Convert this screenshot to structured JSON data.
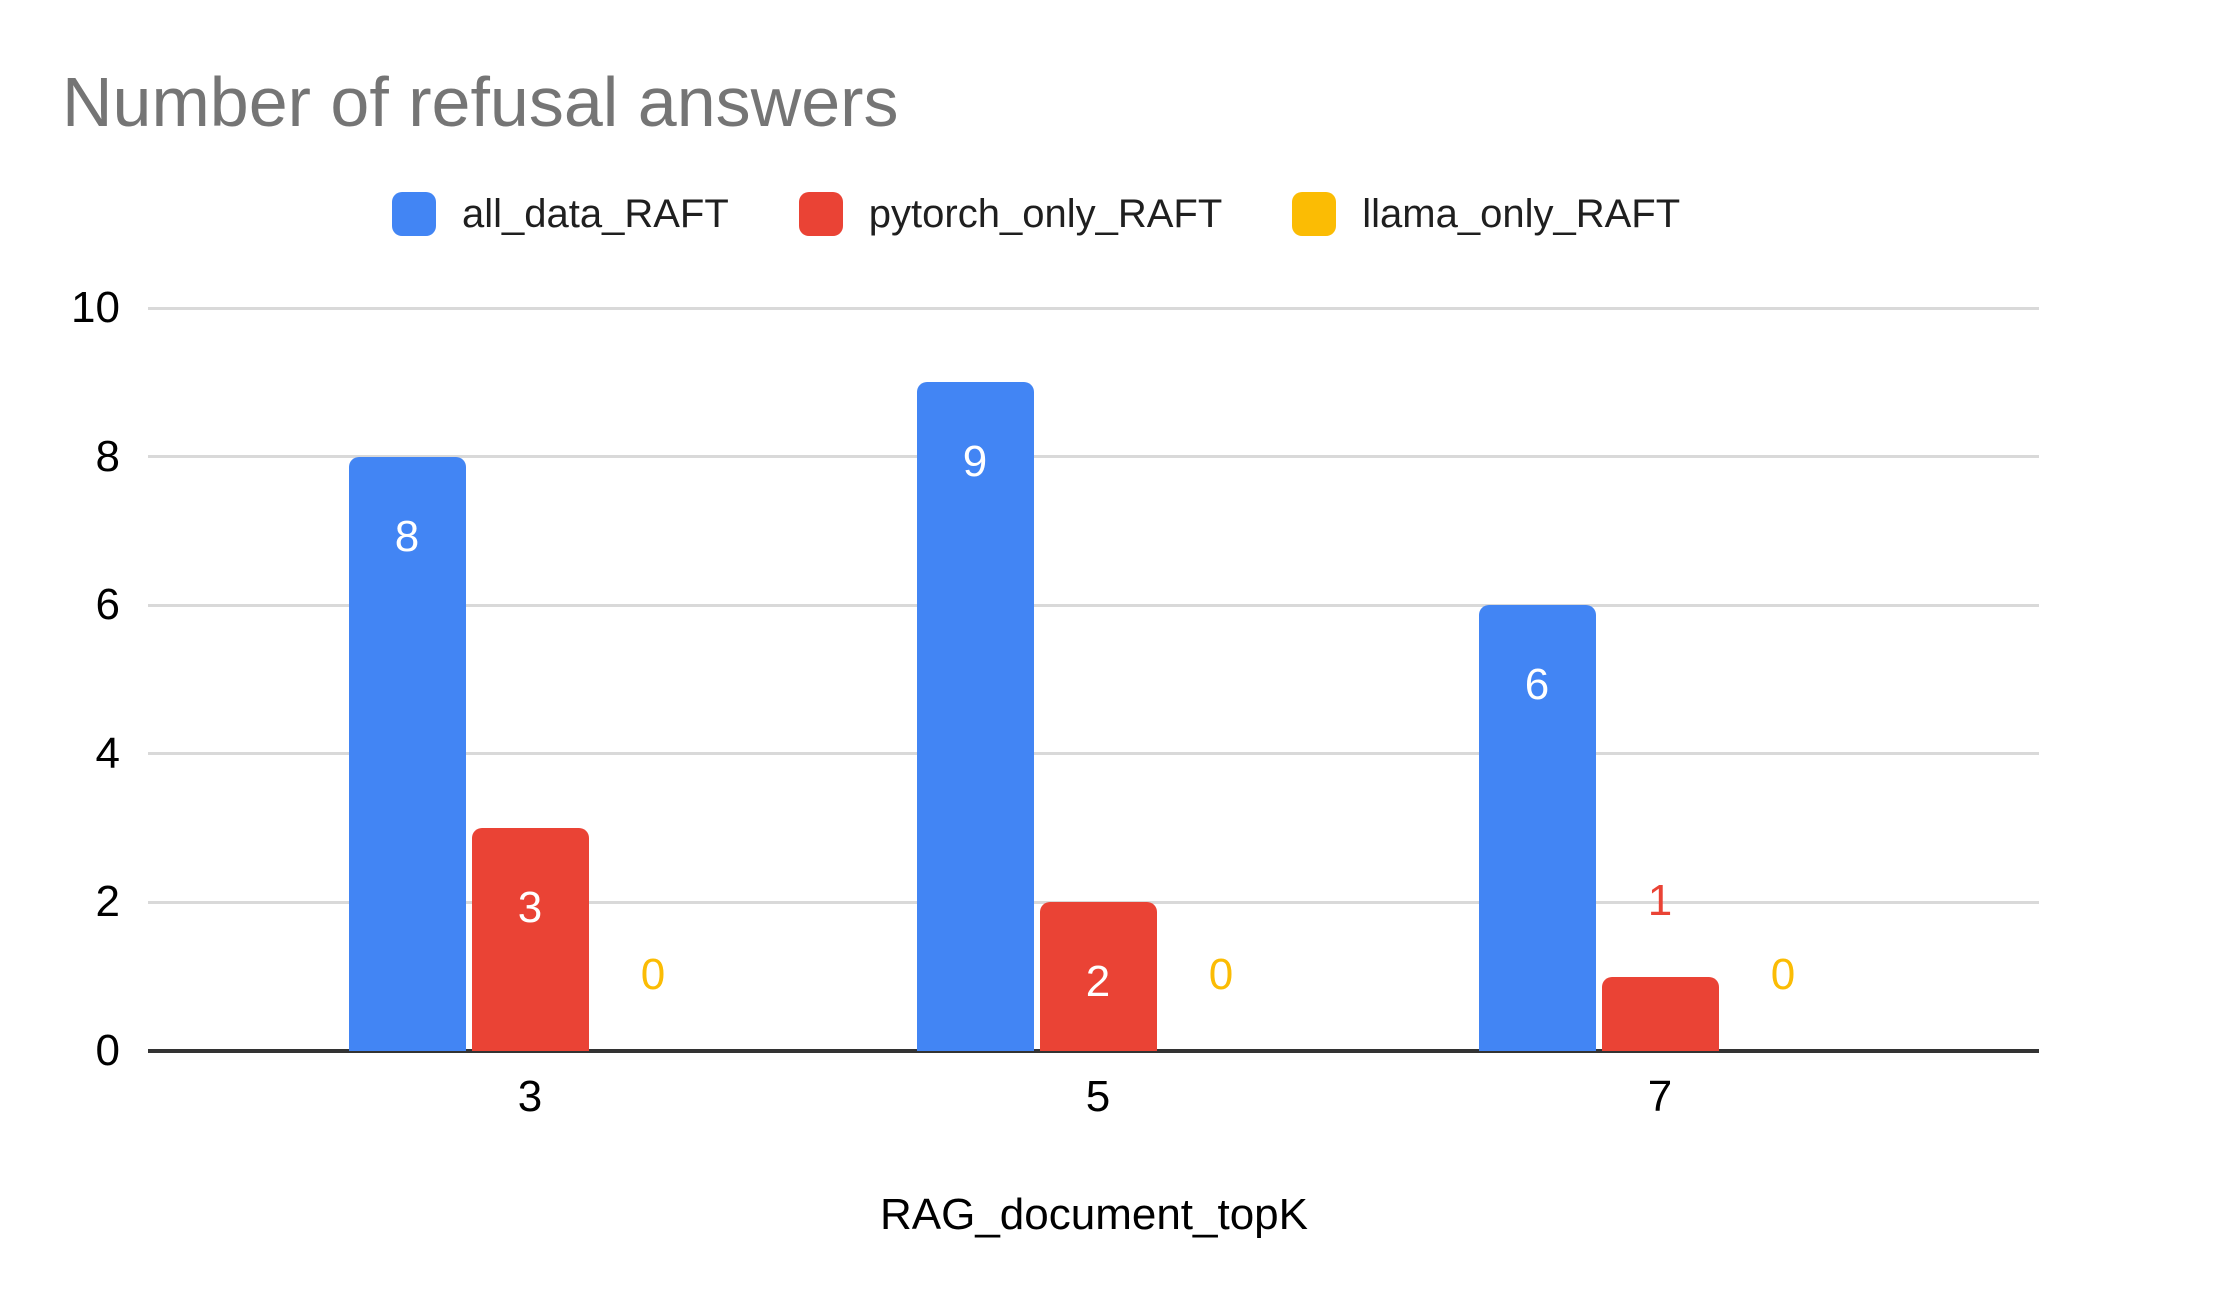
{
  "title": "Number of refusal answers",
  "x_axis_title": "RAG_document_topK",
  "chart_data": {
    "type": "bar",
    "title": "Number of refusal answers",
    "categories": [
      "3",
      "5",
      "7"
    ],
    "series": [
      {
        "name": "all_data_RAFT",
        "color": "#4285F4",
        "values": [
          8,
          9,
          6
        ]
      },
      {
        "name": "pytorch_only_RAFT",
        "color": "#EA4335",
        "values": [
          3,
          2,
          1
        ]
      },
      {
        "name": "llama_only_RAFT",
        "color": "#FBBC04",
        "values": [
          0,
          0,
          0
        ]
      }
    ],
    "xlabel": "RAG_document_topK",
    "ylabel": "",
    "ylim": [
      0,
      10
    ],
    "yticks": [
      0,
      2,
      4,
      6,
      8,
      10
    ],
    "grid": true,
    "legend_position": "top",
    "bar_labels": true,
    "bar_label_inside_color": "#ffffff",
    "title_color": "#757575",
    "gridline_color": "#d9d9d9",
    "axis_line_color": "#333333",
    "text_color": "#000000"
  }
}
